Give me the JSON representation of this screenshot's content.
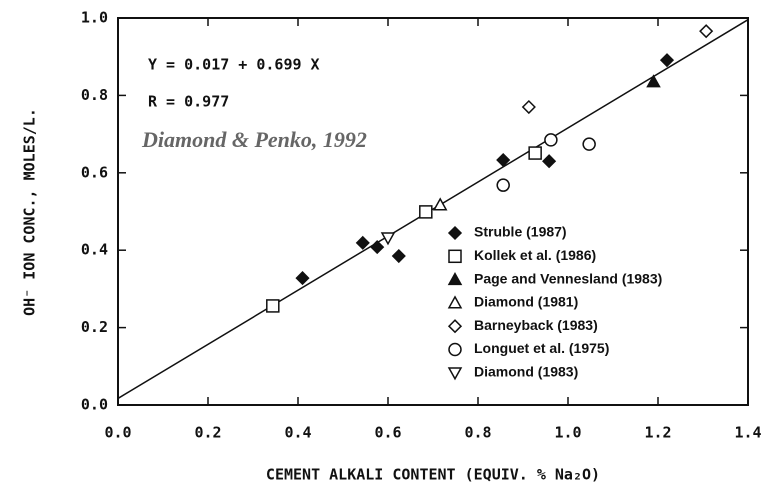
{
  "chart_data": {
    "type": "scatter",
    "annotations": [
      "Y = 0.017 + 0.699 X",
      "R = 0.977"
    ],
    "credit": "Diamond & Penko, 1992",
    "x_label": "CEMENT ALKALI CONTENT (EQUIV. % Na₂O)",
    "y_label": "OH⁻ ION CONC., MOLES/L.",
    "regression": {
      "intercept": 0.017,
      "slope": 0.699
    },
    "xlim": [
      0,
      1.4
    ],
    "ylim": [
      0,
      1.0
    ],
    "xticks": [
      {
        "value": 0,
        "label": "0.0"
      },
      0.2,
      0.4,
      0.6,
      0.8,
      {
        "value": 1,
        "label": "1.0"
      },
      1.2,
      1.4
    ],
    "yticks": [
      {
        "value": 0,
        "label": "0.0"
      },
      0.2,
      0.4,
      0.6,
      0.8,
      {
        "value": 1,
        "label": "1.0"
      }
    ],
    "color": "#111111",
    "series": [
      {
        "name": "Struble (1987)",
        "marker": "diamond",
        "filled": true,
        "x": [
          0.41,
          0.544,
          0.576,
          0.624,
          0.856,
          0.958,
          1.22
        ],
        "values": [
          0.328,
          0.419,
          0.408,
          0.385,
          0.633,
          0.63,
          0.891
        ]
      },
      {
        "name": "Kollek et al. (1986)",
        "marker": "square",
        "filled": false,
        "x": [
          0.344,
          0.684,
          0.927
        ],
        "values": [
          0.256,
          0.499,
          0.651
        ]
      },
      {
        "name": "Page and Vennesland (1983)",
        "marker": "triangle-up",
        "filled": true,
        "x": [
          1.19
        ],
        "values": [
          0.835
        ]
      },
      {
        "name": "Diamond (1981)",
        "marker": "triangle-up",
        "filled": false,
        "x": [
          0.716
        ],
        "values": [
          0.517
        ]
      },
      {
        "name": "Barneyback (1983)",
        "marker": "diamond",
        "filled": false,
        "x": [
          0.913,
          1.307
        ],
        "values": [
          0.77,
          0.966
        ]
      },
      {
        "name": "Longuet et al. (1975)",
        "marker": "circle",
        "filled": false,
        "x": [
          0.856,
          0.962,
          1.047
        ],
        "values": [
          0.568,
          0.685,
          0.674
        ]
      },
      {
        "name": "Diamond (1983)",
        "marker": "triangle-down",
        "filled": false,
        "x": [
          0.6
        ],
        "values": [
          0.432
        ]
      }
    ]
  }
}
